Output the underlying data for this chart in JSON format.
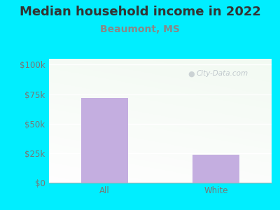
{
  "title": "Median household income in 2022",
  "subtitle": "Beaumont, MS",
  "categories": [
    "All",
    "White"
  ],
  "values": [
    72000,
    24000
  ],
  "bar_color": "#c4aee0",
  "background_color": "#00eeff",
  "title_color": "#333333",
  "subtitle_color": "#888888",
  "tick_color": "#777777",
  "yticks": [
    0,
    25000,
    50000,
    75000,
    100000
  ],
  "ytick_labels": [
    "$0",
    "$25k",
    "$50k",
    "$75k",
    "$100k"
  ],
  "ylim": [
    0,
    105000
  ],
  "watermark": "City-Data.com",
  "title_fontsize": 13,
  "subtitle_fontsize": 10,
  "tick_fontsize": 8.5
}
